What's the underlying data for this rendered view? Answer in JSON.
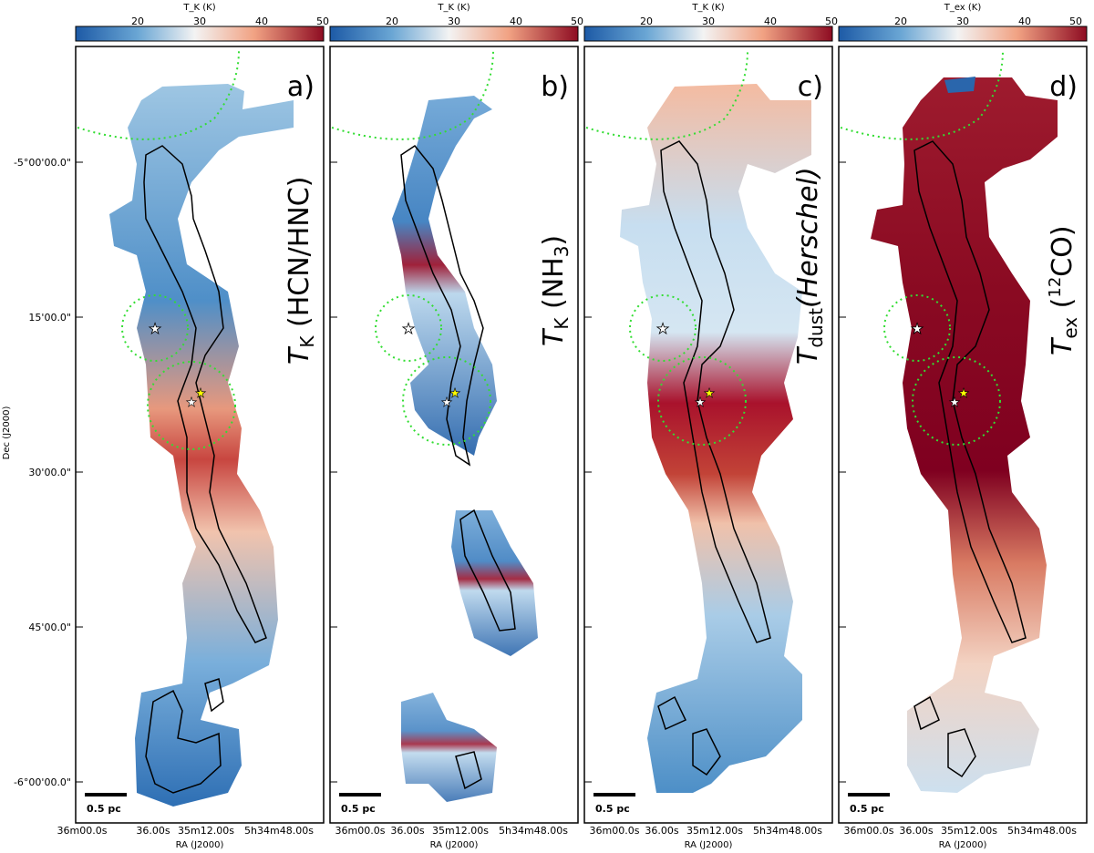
{
  "figure": {
    "panels": [
      {
        "id": "a",
        "letter": "a)",
        "colorbar": {
          "title": "T_K (K)",
          "ticks": [
            "20",
            "30",
            "40",
            "50"
          ],
          "range": [
            10,
            50
          ]
        },
        "label_main": "T",
        "label_sub": "K",
        "label_rest": " (HCN/HNC)",
        "scale_label": "0.5 pc",
        "map_fill": "mixed-warm",
        "stars": "white+yellow"
      },
      {
        "id": "b",
        "letter": "b)",
        "colorbar": {
          "title": "T_K (K)",
          "ticks": [
            "20",
            "30",
            "40",
            "50"
          ],
          "range": [
            10,
            50
          ]
        },
        "label_main": "T",
        "label_sub": "K",
        "label_rest": " (NH",
        "label_rest_sub": "3",
        "label_rest_end": ")",
        "scale_label": "0.5 pc",
        "map_fill": "sparse-cool",
        "stars": "white+yellow"
      },
      {
        "id": "c",
        "letter": "c)",
        "colorbar": {
          "title": "T_K (K)",
          "ticks": [
            "20",
            "30",
            "40",
            "50"
          ],
          "range": [
            10,
            50
          ]
        },
        "label_main": "T",
        "label_sub": "dust",
        "label_rest": "(Herschel)",
        "scale_label": "0.5 pc",
        "map_fill": "smooth-cool",
        "stars": "white+yellow"
      },
      {
        "id": "d",
        "letter": "d)",
        "colorbar": {
          "title": "T_ex (K)",
          "ticks": [
            "20",
            "30",
            "40",
            "50"
          ],
          "range": [
            10,
            50
          ]
        },
        "label_main": "T",
        "label_sub": "ex",
        "label_rest": " (",
        "label_rest_sup": "12",
        "label_rest_end": "CO)",
        "scale_label": "0.5 pc",
        "map_fill": "hot",
        "stars": "white+yellow"
      }
    ],
    "y_axis": {
      "title": "Dec (J2000)",
      "ticks": [
        "-5°00'00.0\"",
        "15'00.0\"",
        "30'00.0\"",
        "45'00.0\"",
        "-6°00'00.0\""
      ]
    },
    "x_axis": {
      "title": "RA (J2000)",
      "ticks": [
        "36m00.0s",
        "36.00s",
        "35m12.00s",
        "5h34m48.00s"
      ]
    }
  },
  "colors": {
    "cold": "#2166ac",
    "mid": "#f7f7f7",
    "hot": "#b2182b",
    "contour": "#000000",
    "circle": "#33dd33",
    "star_yellow": "#ffff00"
  }
}
